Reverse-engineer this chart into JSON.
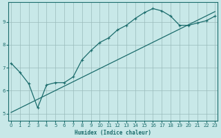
{
  "xlabel": "Humidex (Indice chaleur)",
  "bg_color": "#c8e8e8",
  "grid_color": "#99bbbb",
  "line_color": "#1a6b6b",
  "xlim": [
    -0.3,
    23.3
  ],
  "ylim": [
    4.7,
    9.85
  ],
  "xticks": [
    0,
    1,
    2,
    3,
    4,
    5,
    6,
    7,
    8,
    9,
    10,
    11,
    12,
    13,
    14,
    15,
    16,
    17,
    18,
    19,
    20,
    21,
    22,
    23
  ],
  "yticks": [
    5,
    6,
    7,
    8,
    9
  ],
  "curve1_x": [
    0,
    1,
    2,
    3,
    4,
    5,
    6,
    7,
    8,
    9,
    10,
    11,
    12,
    13,
    14,
    15,
    16,
    17,
    18,
    19,
    20,
    21,
    22,
    23
  ],
  "curve1_y": [
    7.2,
    6.8,
    6.3,
    5.25,
    6.25,
    6.35,
    6.35,
    6.6,
    7.35,
    7.75,
    8.1,
    8.3,
    8.65,
    8.85,
    9.15,
    9.4,
    9.58,
    9.48,
    9.25,
    8.85,
    8.85,
    8.95,
    9.05,
    9.25
  ],
  "curve2_x": [
    0,
    23
  ],
  "curve2_y": [
    5.05,
    9.45
  ]
}
